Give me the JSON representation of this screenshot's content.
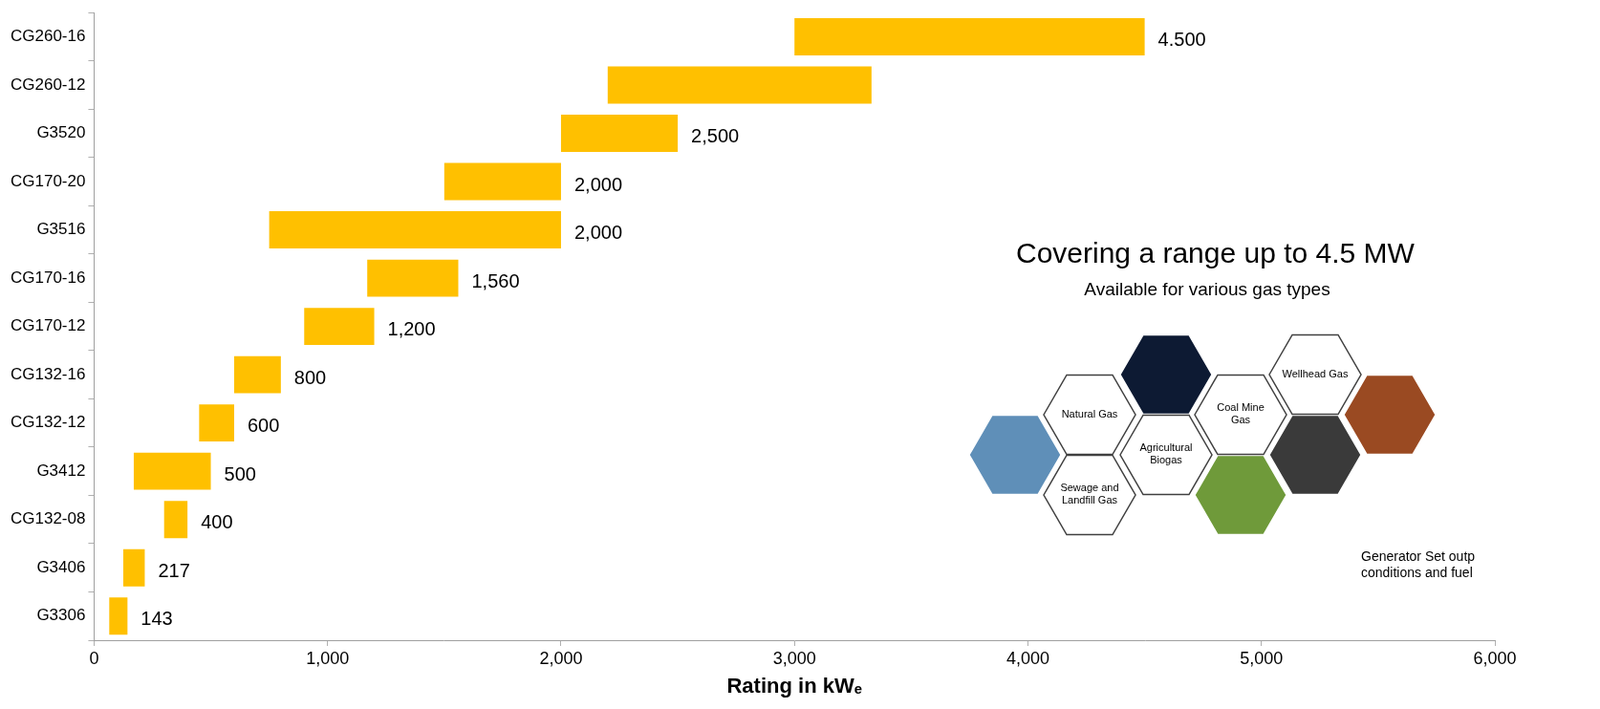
{
  "chart_data": {
    "type": "bar",
    "orientation": "horizontal",
    "categories": [
      "CG260-16",
      "CG260-12",
      "G3520",
      "CG170-20",
      "G3516",
      "CG170-16",
      "CG170-12",
      "CG132-16",
      "CG132-12",
      "G3412",
      "CG132-08",
      "G3406",
      "G3306"
    ],
    "values": [
      [
        3000,
        4500
      ],
      [
        2200,
        3330
      ],
      [
        2000,
        2500
      ],
      [
        1500,
        2000
      ],
      [
        750,
        2000
      ],
      [
        1170,
        1560
      ],
      [
        900,
        1200
      ],
      [
        600,
        800
      ],
      [
        450,
        600
      ],
      [
        170,
        500
      ],
      [
        300,
        400
      ],
      [
        125,
        217
      ],
      [
        65,
        143
      ]
    ],
    "value_labels": [
      "4.500",
      null,
      "2,500",
      "2,000",
      "2,000",
      "1,560",
      "1,200",
      "800",
      "600",
      "500",
      "400",
      "217",
      "143"
    ],
    "color": "#ffc000",
    "xlabel": "Rating in kWₑ",
    "xlim": [
      0,
      6000
    ],
    "xticks": [
      0,
      {
        "value": 1000,
        "label": "1,000"
      },
      {
        "value": 2000,
        "label": "2,000"
      },
      {
        "value": 3000,
        "label": "3,000"
      },
      {
        "value": 4000,
        "label": "4,000"
      },
      {
        "value": 5000,
        "label": "5,000"
      },
      {
        "value": 6000,
        "label": "6,000"
      }
    ],
    "grid": false,
    "data_labels": true,
    "annotations": {
      "headline": "Covering a range up to 4.5 MW",
      "subheadline": "Available for various gas types",
      "gas_types": [
        "Natural Gas",
        "Sewage and Landfill Gas",
        "Agricultural Biogas",
        "Coal Mine Gas",
        "Wellhead Gas"
      ],
      "footnote": [
        "Generator Set outp",
        "conditions and fuel"
      ]
    }
  }
}
